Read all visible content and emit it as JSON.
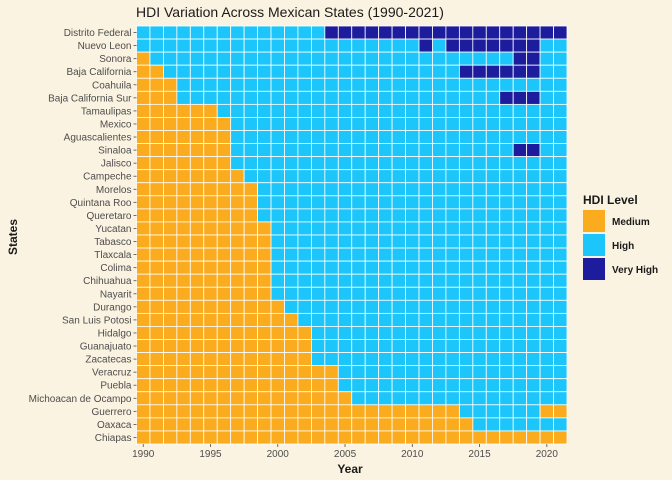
{
  "chart_data": {
    "type": "heatmap",
    "title": "HDI Variation Across Mexican States (1990-2021)",
    "xlabel": "Year",
    "ylabel": "States",
    "x_start": 1990,
    "x_end": 2021,
    "xticks": [
      1990,
      1995,
      2000,
      2005,
      2010,
      2015,
      2020
    ],
    "legend": {
      "title": "HDI Level",
      "position": "right",
      "items": [
        {
          "label": "Medium",
          "color": "#fbab1e"
        },
        {
          "label": "High",
          "color": "#1cc6fb"
        },
        {
          "label": "Very High",
          "color": "#1c1c9c"
        }
      ]
    },
    "rows": [
      {
        "state": "Distrito Federal",
        "runs": [
          [
            "High",
            1990,
            2003
          ],
          [
            "Very High",
            2004,
            2021
          ]
        ]
      },
      {
        "state": "Nuevo Leon",
        "runs": [
          [
            "High",
            1990,
            2010
          ],
          [
            "Very High",
            2011,
            2011
          ],
          [
            "High",
            2012,
            2012
          ],
          [
            "Very High",
            2013,
            2019
          ],
          [
            "High",
            2020,
            2021
          ]
        ]
      },
      {
        "state": "Sonora",
        "runs": [
          [
            "Medium",
            1990,
            1990
          ],
          [
            "High",
            1991,
            2017
          ],
          [
            "Very High",
            2018,
            2019
          ],
          [
            "High",
            2020,
            2021
          ]
        ]
      },
      {
        "state": "Baja California",
        "runs": [
          [
            "Medium",
            1990,
            1991
          ],
          [
            "High",
            1992,
            2013
          ],
          [
            "Very High",
            2014,
            2019
          ],
          [
            "High",
            2020,
            2021
          ]
        ]
      },
      {
        "state": "Coahuila",
        "runs": [
          [
            "Medium",
            1990,
            1992
          ],
          [
            "High",
            1993,
            2021
          ]
        ]
      },
      {
        "state": "Baja California Sur",
        "runs": [
          [
            "Medium",
            1990,
            1992
          ],
          [
            "High",
            1993,
            2016
          ],
          [
            "Very High",
            2017,
            2019
          ],
          [
            "High",
            2020,
            2021
          ]
        ]
      },
      {
        "state": "Tamaulipas",
        "runs": [
          [
            "Medium",
            1990,
            1995
          ],
          [
            "High",
            1996,
            2021
          ]
        ]
      },
      {
        "state": "Mexico",
        "runs": [
          [
            "Medium",
            1990,
            1996
          ],
          [
            "High",
            1997,
            2021
          ]
        ]
      },
      {
        "state": "Aguascalientes",
        "runs": [
          [
            "Medium",
            1990,
            1996
          ],
          [
            "High",
            1997,
            2021
          ]
        ]
      },
      {
        "state": "Sinaloa",
        "runs": [
          [
            "Medium",
            1990,
            1996
          ],
          [
            "High",
            1997,
            2017
          ],
          [
            "Very High",
            2018,
            2019
          ],
          [
            "High",
            2020,
            2021
          ]
        ]
      },
      {
        "state": "Jalisco",
        "runs": [
          [
            "Medium",
            1990,
            1996
          ],
          [
            "High",
            1997,
            2021
          ]
        ]
      },
      {
        "state": "Campeche",
        "runs": [
          [
            "Medium",
            1990,
            1997
          ],
          [
            "High",
            1998,
            2021
          ]
        ]
      },
      {
        "state": "Morelos",
        "runs": [
          [
            "Medium",
            1990,
            1998
          ],
          [
            "High",
            1999,
            2021
          ]
        ]
      },
      {
        "state": "Quintana Roo",
        "runs": [
          [
            "Medium",
            1990,
            1998
          ],
          [
            "High",
            1999,
            2021
          ]
        ]
      },
      {
        "state": "Queretaro",
        "runs": [
          [
            "Medium",
            1990,
            1998
          ],
          [
            "High",
            1999,
            2021
          ]
        ]
      },
      {
        "state": "Yucatan",
        "runs": [
          [
            "Medium",
            1990,
            1999
          ],
          [
            "High",
            2000,
            2021
          ]
        ]
      },
      {
        "state": "Tabasco",
        "runs": [
          [
            "Medium",
            1990,
            1999
          ],
          [
            "High",
            2000,
            2021
          ]
        ]
      },
      {
        "state": "Tlaxcala",
        "runs": [
          [
            "Medium",
            1990,
            1999
          ],
          [
            "High",
            2000,
            2021
          ]
        ]
      },
      {
        "state": "Colima",
        "runs": [
          [
            "Medium",
            1990,
            1999
          ],
          [
            "High",
            2000,
            2021
          ]
        ]
      },
      {
        "state": "Chihuahua",
        "runs": [
          [
            "Medium",
            1990,
            1999
          ],
          [
            "High",
            2000,
            2021
          ]
        ]
      },
      {
        "state": "Nayarit",
        "runs": [
          [
            "Medium",
            1990,
            1999
          ],
          [
            "High",
            2000,
            2021
          ]
        ]
      },
      {
        "state": "Durango",
        "runs": [
          [
            "Medium",
            1990,
            2000
          ],
          [
            "High",
            2001,
            2021
          ]
        ]
      },
      {
        "state": "San Luis Potosi",
        "runs": [
          [
            "Medium",
            1990,
            2001
          ],
          [
            "High",
            2002,
            2021
          ]
        ]
      },
      {
        "state": "Hidalgo",
        "runs": [
          [
            "Medium",
            1990,
            2002
          ],
          [
            "High",
            2003,
            2021
          ]
        ]
      },
      {
        "state": "Guanajuato",
        "runs": [
          [
            "Medium",
            1990,
            2002
          ],
          [
            "High",
            2003,
            2021
          ]
        ]
      },
      {
        "state": "Zacatecas",
        "runs": [
          [
            "Medium",
            1990,
            2002
          ],
          [
            "High",
            2003,
            2021
          ]
        ]
      },
      {
        "state": "Veracruz",
        "runs": [
          [
            "Medium",
            1990,
            2004
          ],
          [
            "High",
            2005,
            2021
          ]
        ]
      },
      {
        "state": "Puebla",
        "runs": [
          [
            "Medium",
            1990,
            2004
          ],
          [
            "High",
            2005,
            2021
          ]
        ]
      },
      {
        "state": "Michoacan de Ocampo",
        "runs": [
          [
            "Medium",
            1990,
            2005
          ],
          [
            "High",
            2006,
            2021
          ]
        ]
      },
      {
        "state": "Guerrero",
        "runs": [
          [
            "Medium",
            1990,
            2013
          ],
          [
            "High",
            2014,
            2019
          ],
          [
            "Medium",
            2020,
            2021
          ]
        ]
      },
      {
        "state": "Oaxaca",
        "runs": [
          [
            "Medium",
            1990,
            2014
          ],
          [
            "High",
            2015,
            2021
          ]
        ]
      },
      {
        "state": "Chiapas",
        "runs": [
          [
            "Medium",
            1990,
            2021
          ]
        ]
      }
    ]
  }
}
